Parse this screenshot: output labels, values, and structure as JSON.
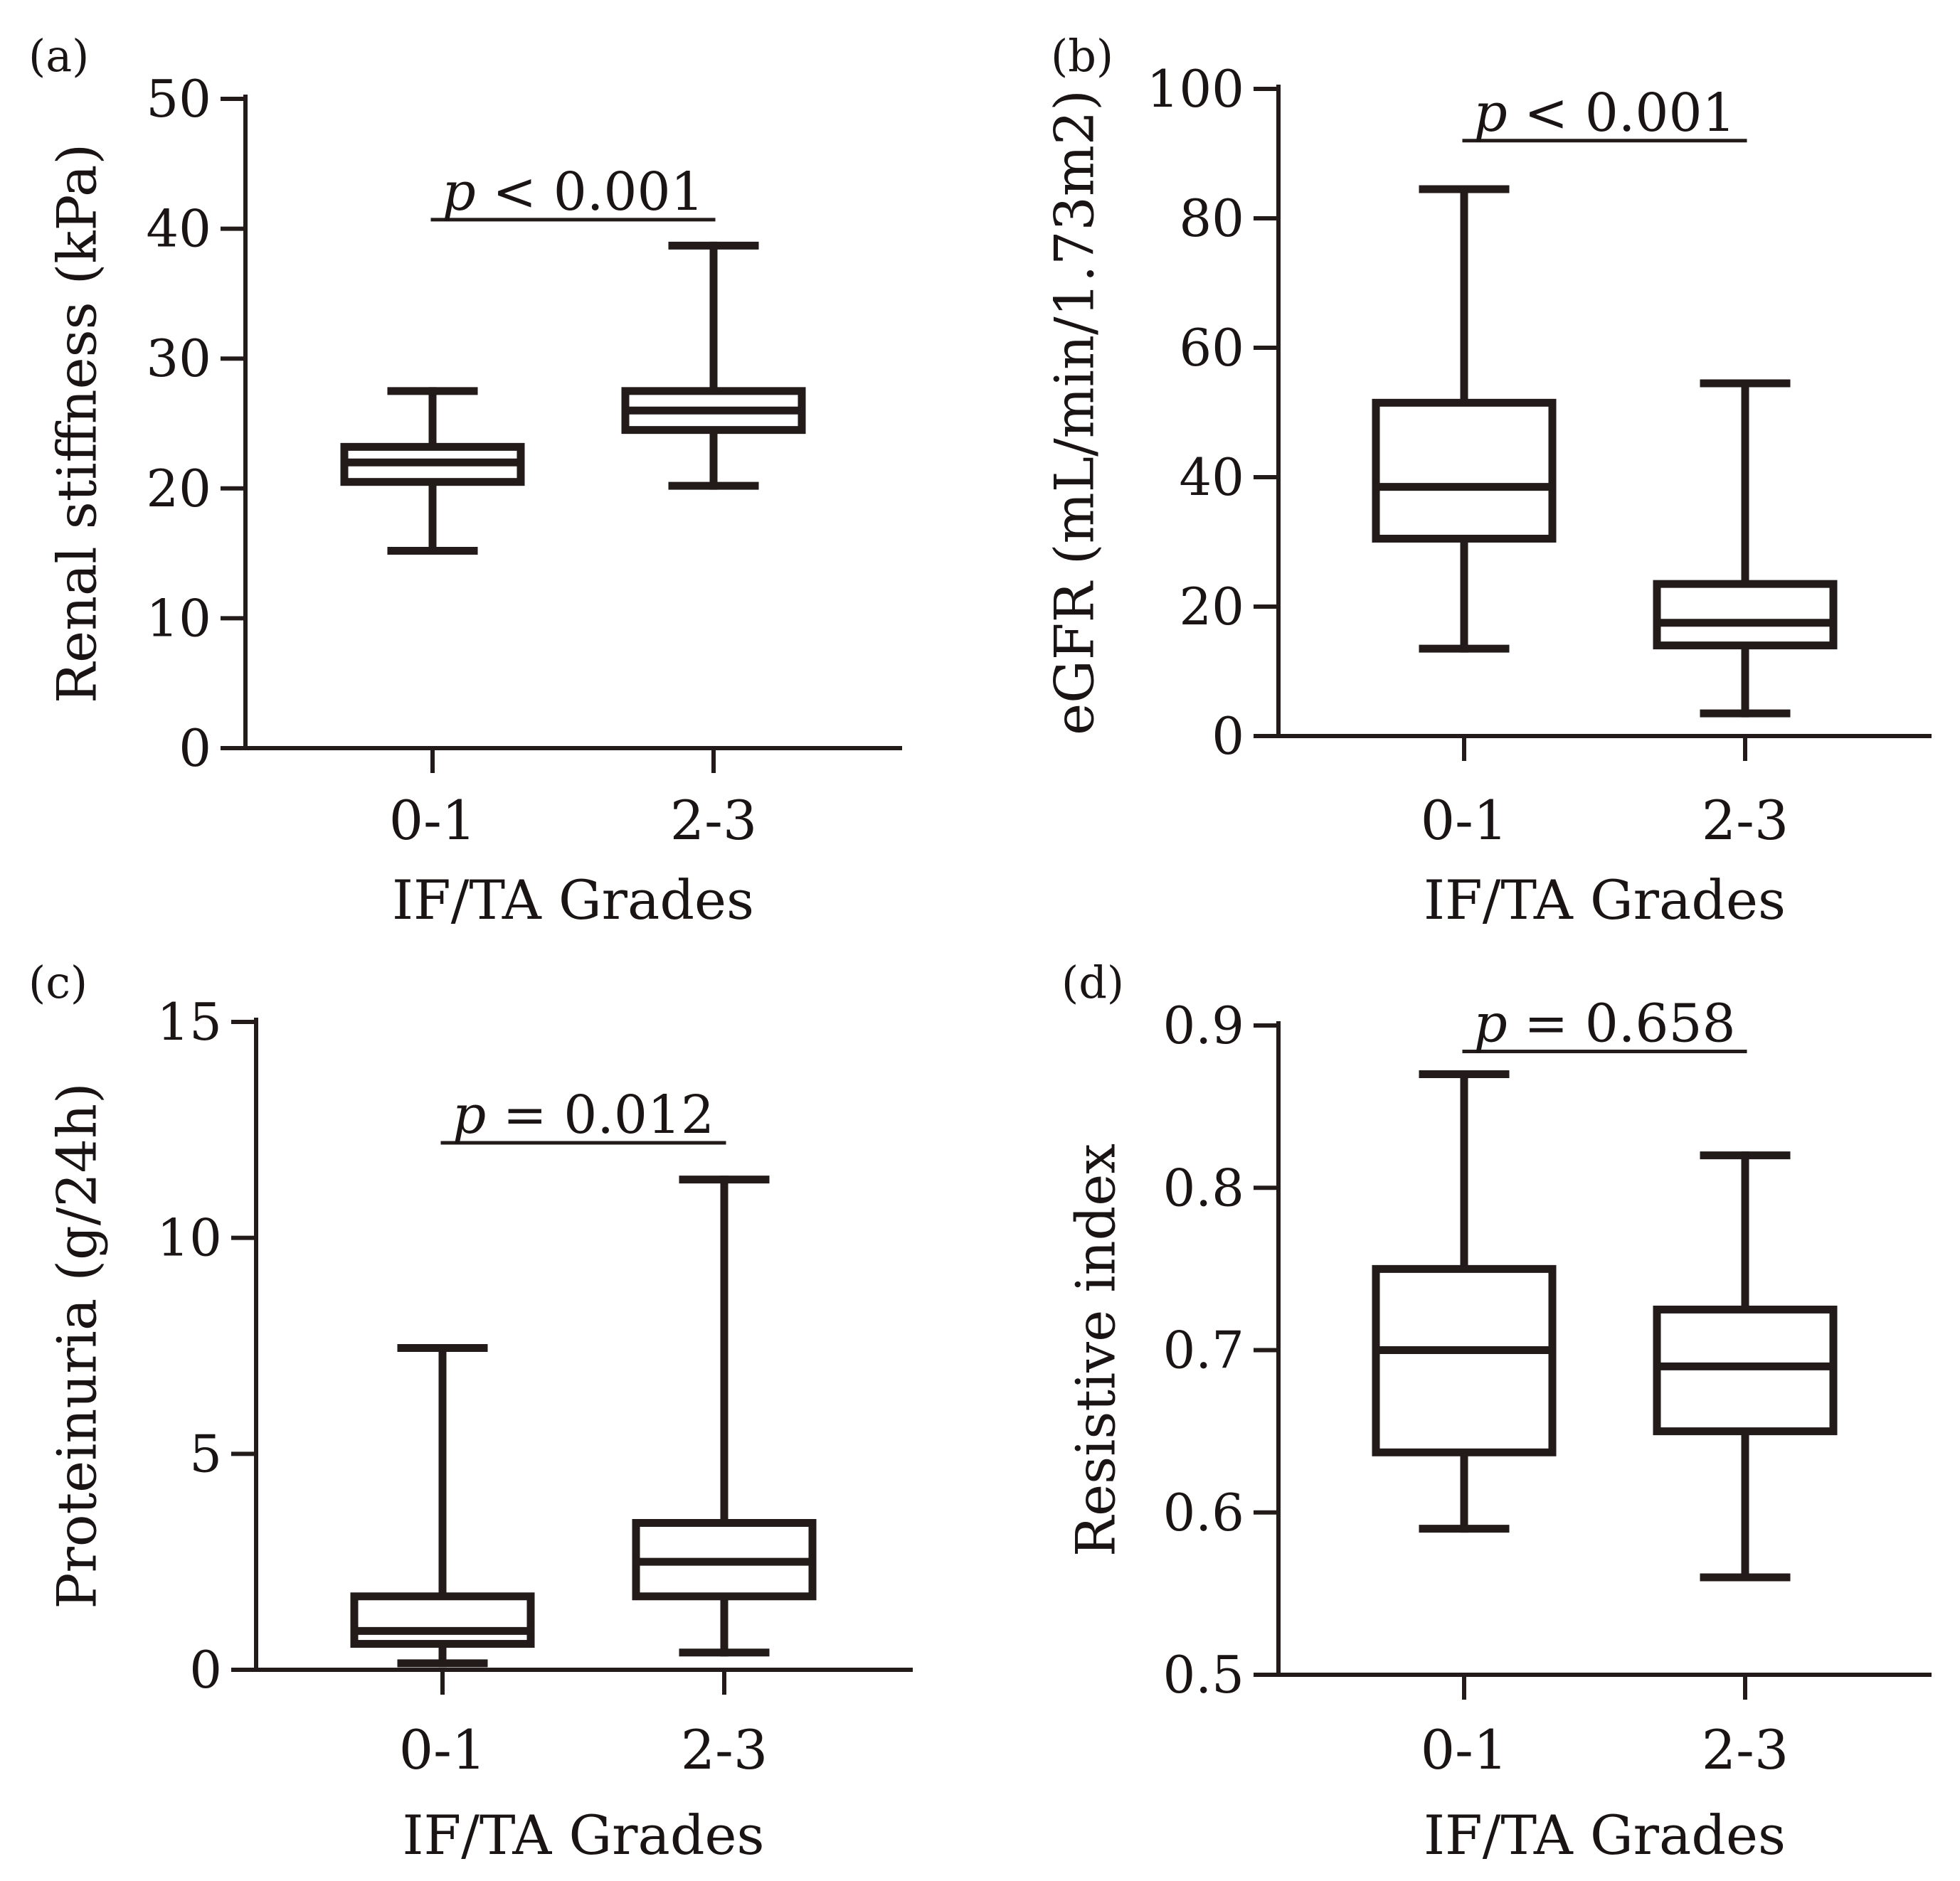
{
  "colors": {
    "ink": "#231a1a",
    "background": "#ffffff"
  },
  "chart_data": [
    {
      "type": "box",
      "panel_label": "(a)",
      "ylabel": "Renal stiffness (kPa)",
      "xlabel": "IF/TA Grades",
      "categories": [
        "0-1",
        "2-3"
      ],
      "ylim": [
        0,
        50
      ],
      "yticks": [
        0,
        10,
        20,
        30,
        40,
        50
      ],
      "ytick_labels": [
        "0",
        "10",
        "20",
        "30",
        "40",
        "50"
      ],
      "boxes": [
        {
          "category": "0-1",
          "min": 15.2,
          "q1": 20.5,
          "median": 22.0,
          "q3": 23.2,
          "max": 27.5
        },
        {
          "category": "2-3",
          "min": 20.2,
          "q1": 24.5,
          "median": 26.0,
          "q3": 27.5,
          "max": 38.7
        }
      ],
      "annotation": {
        "p_symbol": "p",
        "text": " < 0.001",
        "y": 40.7
      }
    },
    {
      "type": "box",
      "panel_label": "(b)",
      "ylabel": "eGFR (mL/min/1.73m2)",
      "xlabel": "IF/TA Grades",
      "categories": [
        "0-1",
        "2-3"
      ],
      "ylim": [
        0,
        100
      ],
      "yticks": [
        0,
        20,
        40,
        60,
        80,
        100
      ],
      "ytick_labels": [
        "0",
        "20",
        "40",
        "60",
        "80",
        "100"
      ],
      "boxes": [
        {
          "category": "0-1",
          "min": 13.5,
          "q1": 30.5,
          "median": 38.5,
          "q3": 51.5,
          "max": 84.5
        },
        {
          "category": "2-3",
          "min": 3.5,
          "q1": 14.0,
          "median": 17.5,
          "q3": 23.5,
          "max": 54.5
        }
      ],
      "annotation": {
        "p_symbol": "p",
        "text": " < 0.001",
        "y": 92.0
      }
    },
    {
      "type": "box",
      "panel_label": "(c)",
      "ylabel": "Proteinuria (g/24h)",
      "xlabel": "IF/TA Grades",
      "categories": [
        "0-1",
        "2-3"
      ],
      "ylim": [
        0,
        15
      ],
      "yticks": [
        0,
        5,
        10,
        15
      ],
      "ytick_labels": [
        "0",
        "5",
        "10",
        "15"
      ],
      "boxes": [
        {
          "category": "0-1",
          "min": 0.15,
          "q1": 0.6,
          "median": 0.9,
          "q3": 1.7,
          "max": 7.45
        },
        {
          "category": "2-3",
          "min": 0.4,
          "q1": 1.7,
          "median": 2.5,
          "q3": 3.4,
          "max": 11.35
        }
      ],
      "annotation": {
        "p_symbol": "p",
        "text": " = 0.012",
        "y": 12.2
      }
    },
    {
      "type": "box",
      "panel_label": "(d)",
      "ylabel": "Resistive index",
      "xlabel": "IF/TA Grades",
      "categories": [
        "0-1",
        "2-3"
      ],
      "ylim": [
        0.5,
        0.9
      ],
      "yticks": [
        0.5,
        0.6,
        0.7,
        0.8,
        0.9
      ],
      "ytick_labels": [
        "0.5",
        "0.6",
        "0.7",
        "0.8",
        "0.9"
      ],
      "boxes": [
        {
          "category": "0-1",
          "min": 0.59,
          "q1": 0.637,
          "median": 0.7,
          "q3": 0.75,
          "max": 0.87
        },
        {
          "category": "2-3",
          "min": 0.56,
          "q1": 0.65,
          "median": 0.69,
          "q3": 0.725,
          "max": 0.82
        }
      ],
      "annotation": {
        "p_symbol": "p",
        "text": " = 0.658",
        "y": 0.884
      }
    }
  ]
}
